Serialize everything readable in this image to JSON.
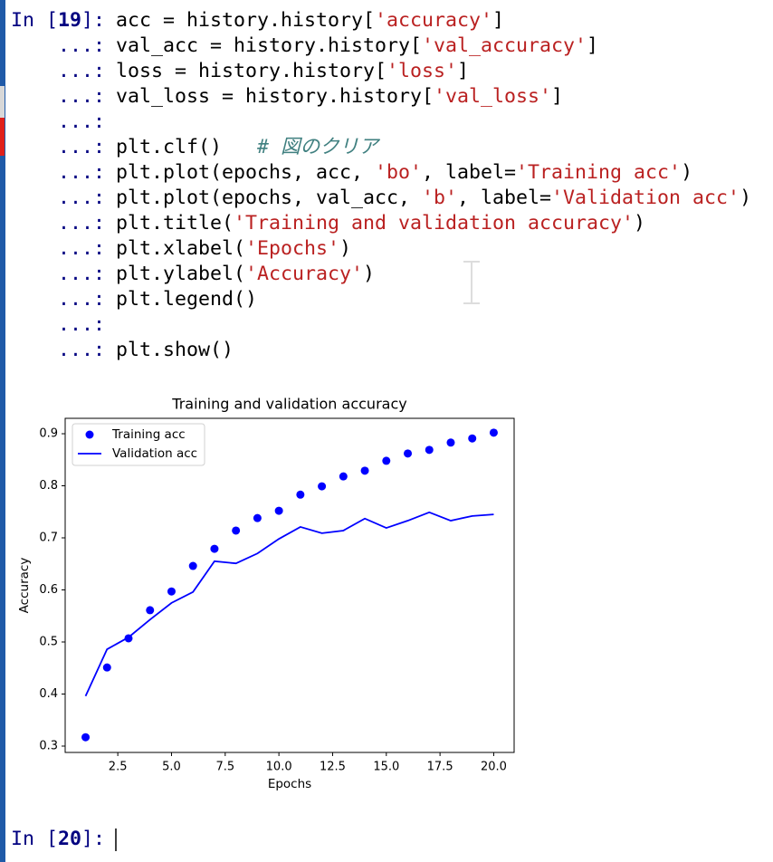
{
  "cells": [
    {
      "prompt": "In [19]:",
      "continuation": "...:",
      "lines": [
        "acc = history.history['accuracy']",
        "val_acc = history.history['val_accuracy']",
        "loss = history.history['loss']",
        "val_loss = history.history['val_loss']",
        null,
        "plt.clf()   # 図のクリア",
        "plt.plot(epochs, acc, 'bo', label='Training acc')",
        "plt.plot(epochs, val_acc, 'b', label='Validation acc')",
        "plt.title('Training and validation accuracy')",
        "plt.xlabel('Epochs')",
        "plt.ylabel('Accuracy')",
        "plt.legend()",
        null,
        "plt.show()"
      ]
    },
    {
      "prompt": "In [20]:"
    }
  ],
  "chart_data": {
    "type": "line",
    "title": "Training and validation accuracy",
    "xlabel": "Epochs",
    "ylabel": "Accuracy",
    "x": [
      1,
      2,
      3,
      4,
      5,
      6,
      7,
      8,
      9,
      10,
      11,
      12,
      13,
      14,
      15,
      16,
      17,
      18,
      19,
      20
    ],
    "series": [
      {
        "name": "Training acc",
        "color": "#0000ff",
        "style": "marker",
        "values": [
          0.317,
          0.451,
          0.507,
          0.561,
          0.597,
          0.646,
          0.679,
          0.714,
          0.738,
          0.752,
          0.783,
          0.799,
          0.818,
          0.829,
          0.848,
          0.862,
          0.869,
          0.883,
          0.891,
          0.902
        ]
      },
      {
        "name": "Validation acc",
        "color": "#0000ff",
        "style": "line",
        "values": [
          0.396,
          0.486,
          0.509,
          0.543,
          0.575,
          0.596,
          0.655,
          0.651,
          0.67,
          0.698,
          0.721,
          0.709,
          0.714,
          0.737,
          0.719,
          0.733,
          0.749,
          0.733,
          0.742,
          0.745
        ]
      }
    ],
    "xlim": [
      0.05,
      20.95
    ],
    "xticks": [
      2.5,
      {
        "value": 5,
        "label": "5.0"
      },
      7.5,
      {
        "value": 10,
        "label": "10.0"
      },
      12.5,
      {
        "value": 15,
        "label": "15.0"
      },
      17.5,
      {
        "value": 20,
        "label": "20.0"
      }
    ],
    "ylim": [
      0.2878,
      0.9296
    ],
    "yticks": [
      0.3,
      0.4,
      0.5,
      0.6,
      0.7,
      0.8,
      0.9
    ],
    "legend": "upper left",
    "grid": false
  }
}
